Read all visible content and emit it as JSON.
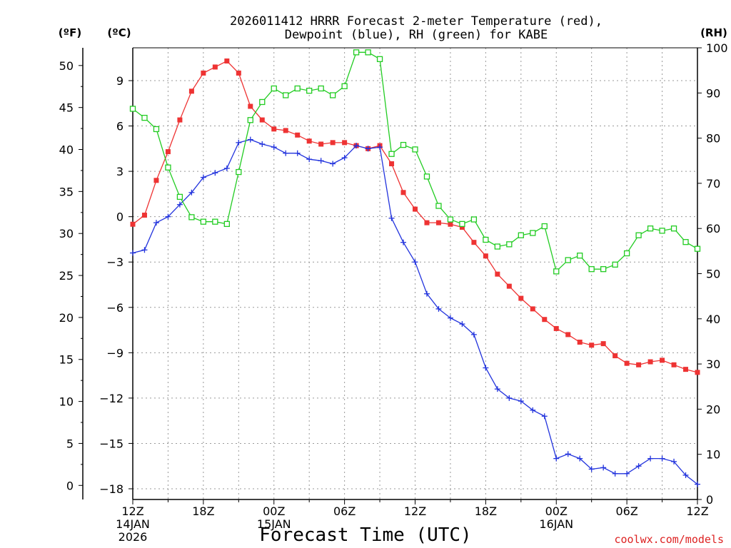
{
  "chart_data": {
    "type": "line",
    "title": "2026011412 HRRR Forecast 2-meter Temperature (red),",
    "subtitle": "Dewpoint (blue), RH (green) for KABE",
    "xlabel": "Forecast Time (UTC)",
    "credit": "coolwx.com/models",
    "axis_units": {
      "fahrenheit": "(ºF)",
      "celsius": "(ºC)",
      "rh": "(RH)"
    },
    "x_ticks": [
      {
        "hour": 0,
        "label": "12Z",
        "date": "14JAN",
        "year": "2026"
      },
      {
        "hour": 6,
        "label": "18Z"
      },
      {
        "hour": 12,
        "label": "00Z",
        "date": "15JAN"
      },
      {
        "hour": 18,
        "label": "06Z"
      },
      {
        "hour": 24,
        "label": "12Z"
      },
      {
        "hour": 30,
        "label": "18Z"
      },
      {
        "hour": 36,
        "label": "00Z",
        "date": "16JAN"
      },
      {
        "hour": 42,
        "label": "06Z"
      },
      {
        "hour": 48,
        "label": "12Z"
      }
    ],
    "xlim": [
      0,
      48
    ],
    "celsius_ticks": [
      "9",
      "6",
      "3",
      "0",
      "−3",
      "−6",
      "−9",
      "−12",
      "−15",
      "−18"
    ],
    "celsius_tick_values": [
      9,
      6,
      3,
      0,
      -3,
      -6,
      -9,
      -12,
      -15,
      -18
    ],
    "ylim_celsius": [
      -18,
      11.5
    ],
    "fahrenheit_ticks": [
      "50",
      "45",
      "40",
      "35",
      "30",
      "25",
      "20",
      "15",
      "10",
      "5",
      "0"
    ],
    "fahrenheit_tick_values": [
      50,
      45,
      40,
      35,
      30,
      25,
      20,
      15,
      10,
      5,
      0
    ],
    "rh_ticks": [
      "100",
      "90",
      "80",
      "70",
      "60",
      "50",
      "40",
      "30",
      "20",
      "10",
      "0"
    ],
    "rh_tick_values": [
      100,
      90,
      80,
      70,
      60,
      50,
      40,
      30,
      20,
      10,
      0
    ],
    "ylim_rh": [
      0,
      100
    ],
    "grid": true,
    "series": [
      {
        "name": "Temperature",
        "color": "#ee3333",
        "marker": "filled-square",
        "axis": "celsius",
        "x": [
          0,
          1,
          2,
          3,
          4,
          5,
          6,
          7,
          8,
          9,
          10,
          11,
          12,
          13,
          14,
          15,
          16,
          17,
          18,
          19,
          20,
          21,
          22,
          23,
          24,
          25,
          26,
          27,
          28,
          29,
          30,
          31,
          32,
          33,
          34,
          35,
          36,
          37,
          38,
          39,
          40,
          41,
          42,
          43,
          44,
          45,
          46,
          47,
          48
        ],
        "values": [
          -0.5,
          0.1,
          2.4,
          4.3,
          6.4,
          8.3,
          9.5,
          9.9,
          10.3,
          9.5,
          7.3,
          6.4,
          5.8,
          5.7,
          5.4,
          5.0,
          4.8,
          4.9,
          4.9,
          4.7,
          4.5,
          4.7,
          3.5,
          1.6,
          0.5,
          -0.4,
          -0.4,
          -0.5,
          -0.7,
          -1.7,
          -2.6,
          -3.8,
          -4.6,
          -5.4,
          -6.1,
          -6.8,
          -7.4,
          -7.8,
          -8.3,
          -8.5,
          -8.4,
          -9.2,
          -9.7,
          -9.8,
          -9.6,
          -9.5,
          -9.8,
          -10.1,
          -10.3
        ]
      },
      {
        "name": "Dewpoint",
        "color": "#2233dd",
        "marker": "plus",
        "axis": "celsius",
        "x": [
          0,
          1,
          2,
          3,
          4,
          5,
          6,
          7,
          8,
          9,
          10,
          11,
          12,
          13,
          14,
          15,
          16,
          17,
          18,
          19,
          20,
          21,
          22,
          23,
          24,
          25,
          26,
          27,
          28,
          29,
          30,
          31,
          32,
          33,
          34,
          35,
          36,
          37,
          38,
          39,
          40,
          41,
          42,
          43,
          44,
          45,
          46,
          47,
          48
        ],
        "values": [
          -2.4,
          -2.2,
          -0.4,
          0,
          0.8,
          1.6,
          2.6,
          2.9,
          3.2,
          4.9,
          5.1,
          4.8,
          4.6,
          4.2,
          4.2,
          3.8,
          3.7,
          3.5,
          3.9,
          4.7,
          4.5,
          4.6,
          -0.1,
          -1.7,
          -3.0,
          -5.1,
          -6.1,
          -6.7,
          -7.1,
          -7.8,
          -10.0,
          -11.4,
          -12.0,
          -12.2,
          -12.8,
          -13.2,
          -16.0,
          -15.7,
          -16.0,
          -16.7,
          -16.6,
          -17.0,
          -17.0,
          -16.5,
          -16.0,
          -16.0,
          -16.2,
          -17.1,
          -17.7
        ]
      },
      {
        "name": "RH",
        "color": "#22cc22",
        "marker": "open-square",
        "axis": "rh",
        "x": [
          0,
          1,
          2,
          3,
          4,
          5,
          6,
          7,
          8,
          9,
          10,
          11,
          12,
          13,
          14,
          15,
          16,
          17,
          18,
          19,
          20,
          21,
          22,
          23,
          24,
          25,
          26,
          27,
          28,
          29,
          30,
          31,
          32,
          33,
          34,
          35,
          36,
          37,
          38,
          39,
          40,
          41,
          42,
          43,
          44,
          45,
          46,
          47,
          48
        ],
        "values": [
          86.5,
          84.5,
          82.0,
          73.5,
          67.0,
          62.5,
          61.5,
          61.5,
          61.0,
          72.5,
          84.0,
          88.0,
          91.0,
          89.5,
          91.0,
          90.5,
          91.0,
          89.5,
          91.5,
          99.0,
          99.0,
          97.5,
          76.5,
          78.5,
          77.5,
          71.5,
          65.0,
          62.0,
          61.0,
          62.0,
          57.5,
          56.0,
          56.5,
          58.5,
          59.0,
          60.5,
          50.5,
          53.0,
          54.0,
          51.0,
          51.0,
          52.0,
          54.5,
          58.5,
          60.0,
          59.5,
          60.0,
          57.0,
          55.5
        ]
      }
    ]
  }
}
